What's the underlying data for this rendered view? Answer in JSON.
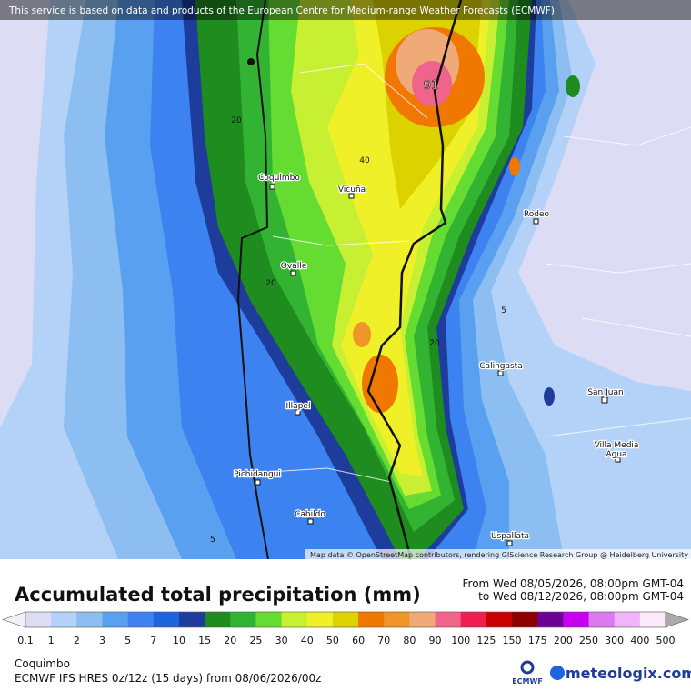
{
  "banner": "This service is based on data and products of the European Centre for Medium-range Weather Forecasts (ECMWF)",
  "map": {
    "places": [
      "Coquimbo",
      "Vicuña",
      "Ovalle",
      "Rodeo",
      "Calingasta",
      "San Juan",
      "Villa Media",
      "Agua",
      "Illapel",
      "Pichidangui",
      "Cabildo",
      "Uspallata"
    ],
    "contour_labels": [
      "20",
      "40",
      "91",
      "20",
      "5",
      "20",
      "5"
    ],
    "attribution": "Map data © OpenStreetMap contributors, rendering GIScience Research Group @ Heidelberg University"
  },
  "header": {
    "title": "Accumulated total precipitation (mm)",
    "from": "From Wed 08/05/2026, 08:00pm GMT-04",
    "to": "to Wed 08/12/2026, 08:00pm GMT-04"
  },
  "legend": {
    "labels": [
      0.1,
      1,
      2,
      3,
      5,
      7,
      10,
      15,
      20,
      25,
      30,
      40,
      50,
      60,
      70,
      80,
      90,
      100,
      125,
      150,
      175,
      200,
      250,
      300,
      400,
      500
    ],
    "colors": [
      "#dcdcf5",
      "#b4d2f8",
      "#8cbef2",
      "#5aa0f0",
      "#3c82f0",
      "#1e64dc",
      "#1e3c9b",
      "#1e8c1e",
      "#32b432",
      "#64dc32",
      "#c8f032",
      "#f0f028",
      "#dcd200",
      "#f07800",
      "#f09628",
      "#f0aa78",
      "#f0648c",
      "#f01e50",
      "#c80000",
      "#8c0000",
      "#6e0096",
      "#c800f0",
      "#dc78f0",
      "#f0b4f8",
      "#faeafa"
    ]
  },
  "footer": {
    "location": "Coquimbo",
    "model": "ECMWF IFS HRES 0z/12z (15 days) from 08/06/2026/00z",
    "ecmwf": "ECMWF",
    "brand": "meteologix.com"
  }
}
